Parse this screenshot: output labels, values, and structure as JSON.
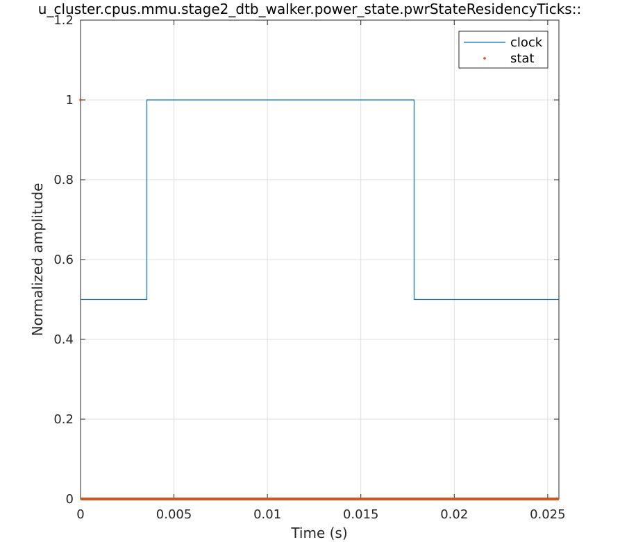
{
  "chart_data": {
    "type": "line",
    "title": "u_cluster.cpus.mmu.stage2_dtb_walker.power_state.pwrStateResidencyTicks::",
    "xlabel": "Time (s)",
    "ylabel": "Normalized amplitude",
    "xlim": [
      0,
      0.0256
    ],
    "ylim": [
      0,
      1.2
    ],
    "xticks": [
      0,
      0.005,
      0.01,
      0.015,
      0.02,
      0.025
    ],
    "xtick_labels": [
      "0",
      "0.005",
      "0.01",
      "0.015",
      "0.02",
      "0.025"
    ],
    "yticks": [
      0,
      0.2,
      0.4,
      0.6,
      0.8,
      1,
      1.2
    ],
    "ytick_labels": [
      "0",
      "0.2",
      "0.4",
      "0.6",
      "0.8",
      "1",
      "1.2"
    ],
    "grid": true,
    "legend_position": "top-right",
    "series": [
      {
        "name": "clock",
        "style": "step-line",
        "color": "#0072BD",
        "x": [
          0,
          0.00355,
          0.00355,
          0.01785,
          0.01785,
          0.0256
        ],
        "y": [
          0.5,
          0.5,
          1,
          1,
          0.5,
          0.5
        ]
      },
      {
        "name": "stat",
        "style": "points",
        "color": "#D95319",
        "x": [
          0,
          0.0256
        ],
        "y": [
          0,
          0
        ],
        "extra_points": [
          [
            0,
            1
          ]
        ]
      }
    ]
  }
}
